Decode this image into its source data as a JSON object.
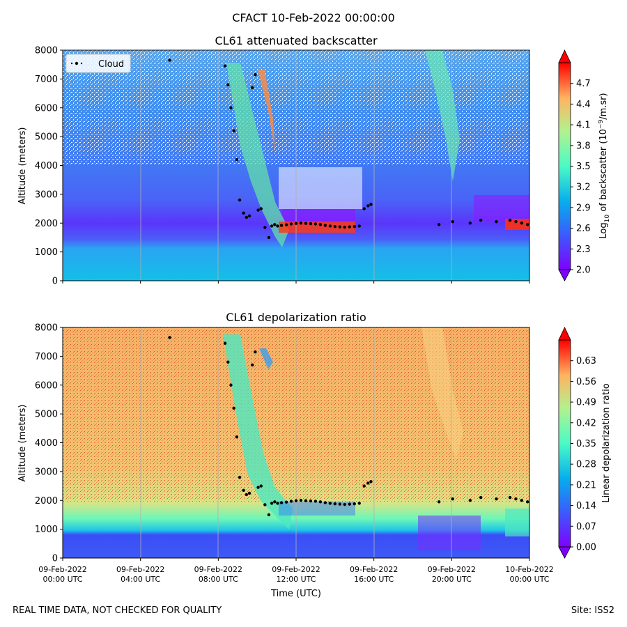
{
  "suptitle": "CFACT 10-Feb-2022 00:00:00",
  "footer_left": "REAL TIME DATA, NOT CHECKED FOR QUALITY",
  "footer_right": "Site: ISS2",
  "chart_data": [
    {
      "type": "heatmap",
      "title": "CL61 attenuated backscatter",
      "ylabel": "Altitude (meters)",
      "xlabel": "",
      "ylim": [
        0,
        8000
      ],
      "yticks": [
        "0",
        "1000",
        "2000",
        "3000",
        "4000",
        "5000",
        "6000",
        "7000",
        "8000"
      ],
      "xlim_hours": [
        0,
        24
      ],
      "grid": true,
      "colorbar": {
        "label": "Log10 of backscatter (10^-9/m.sr)",
        "label_main": "Log",
        "label_sub": "10",
        "label_mid": " of backscatter (10",
        "label_sup": "−9",
        "label_end": "/m.sr)",
        "range": [
          2.0,
          5.0
        ],
        "ticks": [
          "2.0",
          "2.3",
          "2.6",
          "2.9",
          "3.2",
          "3.5",
          "3.8",
          "4.1",
          "4.4",
          "4.7"
        ],
        "colormap": "rainbow"
      },
      "legend": {
        "entries": [
          "Cloud"
        ],
        "position": "upper left"
      }
    },
    {
      "type": "heatmap",
      "title": "CL61 depolarization ratio",
      "ylabel": "Altitude (meters)",
      "xlabel": "Time (UTC)",
      "ylim": [
        0,
        8000
      ],
      "yticks": [
        "0",
        "1000",
        "2000",
        "3000",
        "4000",
        "5000",
        "6000",
        "7000",
        "8000"
      ],
      "xticks": [
        {
          "date": "09-Feb-2022",
          "time": "00:00 UTC"
        },
        {
          "date": "09-Feb-2022",
          "time": "04:00 UTC"
        },
        {
          "date": "09-Feb-2022",
          "time": "08:00 UTC"
        },
        {
          "date": "09-Feb-2022",
          "time": "12:00 UTC"
        },
        {
          "date": "09-Feb-2022",
          "time": "16:00 UTC"
        },
        {
          "date": "09-Feb-2022",
          "time": "20:00 UTC"
        },
        {
          "date": "10-Feb-2022",
          "time": "00:00 UTC"
        }
      ],
      "grid": true,
      "colorbar": {
        "label": "Linear depolarization ratio",
        "range": [
          0.0,
          0.7
        ],
        "ticks": [
          "0.00",
          "0.07",
          "0.14",
          "0.21",
          "0.28",
          "0.35",
          "0.42",
          "0.49",
          "0.56",
          "0.63"
        ],
        "colormap": "rainbow"
      }
    }
  ],
  "cloud_series": {
    "name": "Cloud",
    "x_hours": [
      5.5,
      8.35,
      8.5,
      8.65,
      8.8,
      8.95,
      9.1,
      9.3,
      9.45,
      9.6,
      9.75,
      9.9,
      10.05,
      10.2,
      10.4,
      10.6,
      10.75,
      10.9,
      11.05,
      11.25,
      11.5,
      11.75,
      12.0,
      12.25,
      12.5,
      12.75,
      13.0,
      13.25,
      13.5,
      13.75,
      14.0,
      14.25,
      14.5,
      14.75,
      15.0,
      15.25,
      15.5,
      15.7,
      15.85,
      19.35,
      20.05,
      20.95,
      21.5,
      22.3,
      23.0,
      23.3,
      23.6,
      23.9
    ],
    "y_m": [
      7650,
      7450,
      6800,
      6000,
      5200,
      4200,
      2800,
      2350,
      2200,
      2250,
      6700,
      7150,
      2450,
      2500,
      1850,
      1500,
      1900,
      1950,
      1900,
      1920,
      1940,
      1970,
      1990,
      2000,
      1990,
      1980,
      1970,
      1950,
      1920,
      1900,
      1880,
      1870,
      1860,
      1870,
      1880,
      1900,
      2500,
      2600,
      2650,
      1950,
      2050,
      2000,
      2100,
      2050,
      2100,
      2050,
      2000,
      1950
    ]
  }
}
